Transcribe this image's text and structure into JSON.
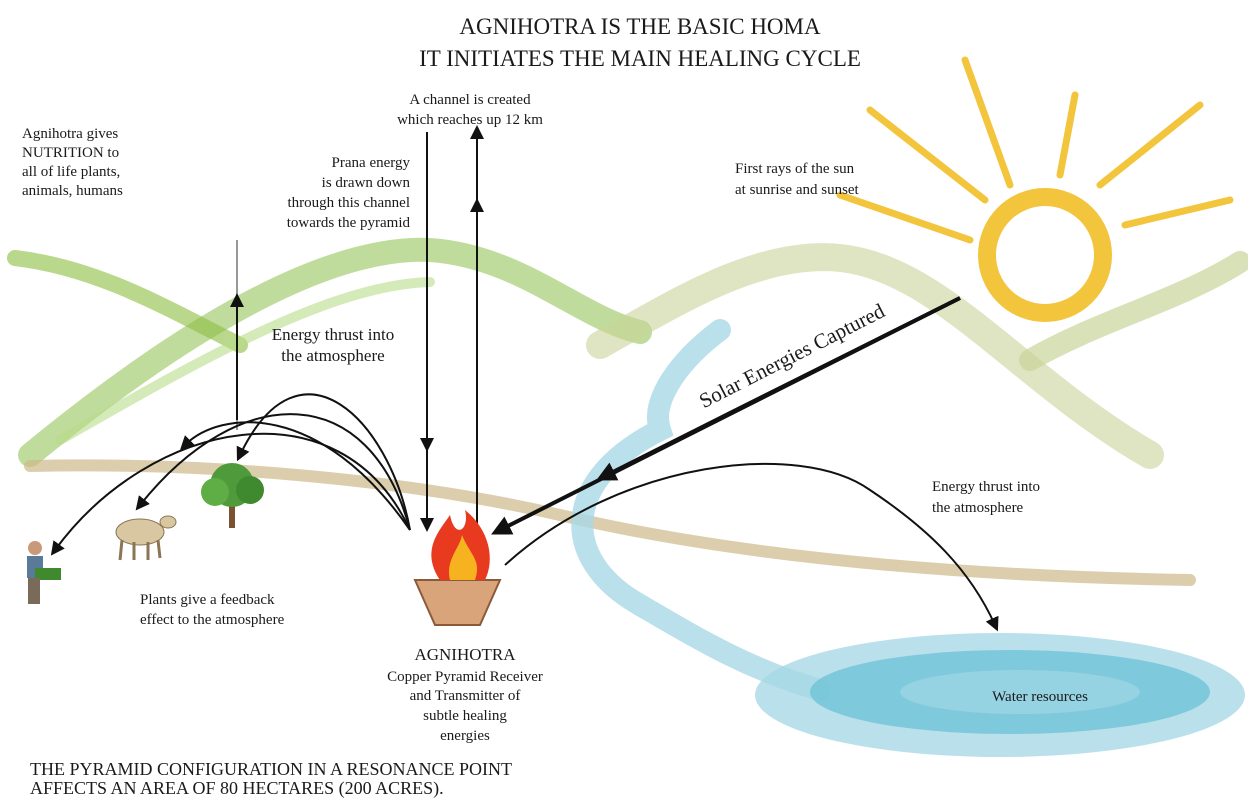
{
  "header": {
    "lines": [
      "AGNIHOTRA IS THE BASIC HOMA",
      "IT INITIATES THE MAIN HEALING CYCLE"
    ]
  },
  "labels": {
    "channel": [
      "A channel is created",
      "which reaches up 12 km"
    ],
    "nutrition": [
      "Agnihotra gives",
      "NUTRITION to",
      "all of life plants,",
      "animals, humans"
    ],
    "prana": [
      "Prana energy",
      "is drawn down",
      "through this channel",
      "towards the pyramid"
    ],
    "sun": [
      "First rays of the sun",
      "at sunrise and sunset"
    ],
    "thrust_left": [
      "Energy thrust into",
      "the atmosphere"
    ],
    "solar": "Solar Energies Captured",
    "thrust_right": [
      "Energy thrust into",
      "the atmosphere"
    ],
    "feedback": [
      "Plants give a feedback",
      "effect to the atmosphere"
    ],
    "agnihotra": [
      "AGNIHOTRA",
      "Copper Pyramid Receiver",
      "and Transmitter of",
      "subtle healing",
      "energies"
    ],
    "water": "Water resources"
  },
  "footer": {
    "lines": [
      "THE PYRAMID CONFIGURATION IN A RESONANCE POINT",
      "AFFECTS AN AREA OF 80 HECTARES (200 ACRES)."
    ]
  }
}
